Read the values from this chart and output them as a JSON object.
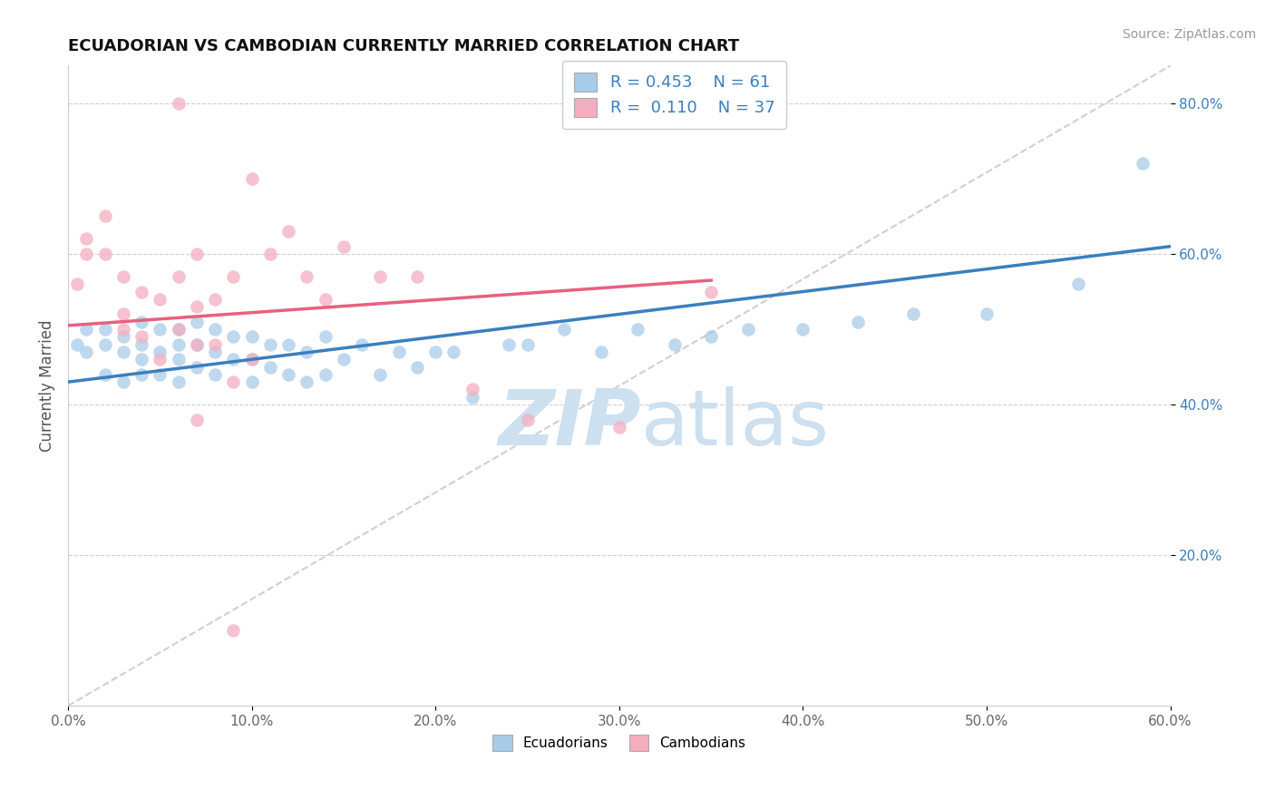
{
  "title": "ECUADORIAN VS CAMBODIAN CURRENTLY MARRIED CORRELATION CHART",
  "source": "Source: ZipAtlas.com",
  "ylabel": "Currently Married",
  "x_min": 0.0,
  "x_max": 0.6,
  "y_min": 0.0,
  "y_max": 0.85,
  "x_ticks": [
    0.0,
    0.1,
    0.2,
    0.3,
    0.4,
    0.5,
    0.6
  ],
  "x_tick_labels": [
    "0.0%",
    "10.0%",
    "20.0%",
    "30.0%",
    "40.0%",
    "50.0%",
    "60.0%"
  ],
  "y_ticks": [
    0.2,
    0.4,
    0.6,
    0.8
  ],
  "y_tick_labels": [
    "20.0%",
    "40.0%",
    "60.0%",
    "80.0%"
  ],
  "r_ecuadorian": 0.453,
  "n_ecuadorian": 61,
  "r_cambodian": 0.11,
  "n_cambodian": 37,
  "color_ecuadorian": "#a8cce8",
  "color_cambodian": "#f4aec0",
  "line_color_ecuadorian": "#3a7fc0",
  "line_color_cambodian": "#e86080",
  "dashed_line_color": "#d0d0d0",
  "watermark_color": "#cce0f0",
  "legend_label_ecuadorian": "Ecuadorians",
  "legend_label_cambodian": "Cambodians",
  "ecu_line_start_y": 0.43,
  "ecu_line_end_y": 0.61,
  "cam_line_start_y": 0.505,
  "cam_line_end_y": 0.565,
  "cam_line_end_x": 0.35,
  "ecuadorian_x": [
    0.005,
    0.01,
    0.01,
    0.02,
    0.02,
    0.02,
    0.03,
    0.03,
    0.03,
    0.04,
    0.04,
    0.04,
    0.04,
    0.05,
    0.05,
    0.05,
    0.06,
    0.06,
    0.06,
    0.06,
    0.07,
    0.07,
    0.07,
    0.08,
    0.08,
    0.08,
    0.09,
    0.09,
    0.1,
    0.1,
    0.1,
    0.11,
    0.11,
    0.12,
    0.12,
    0.13,
    0.13,
    0.14,
    0.14,
    0.15,
    0.16,
    0.17,
    0.18,
    0.19,
    0.2,
    0.21,
    0.22,
    0.24,
    0.25,
    0.27,
    0.29,
    0.31,
    0.33,
    0.35,
    0.37,
    0.4,
    0.43,
    0.46,
    0.5,
    0.55,
    0.585
  ],
  "ecuadorian_y": [
    0.48,
    0.47,
    0.5,
    0.5,
    0.48,
    0.44,
    0.49,
    0.47,
    0.43,
    0.51,
    0.48,
    0.46,
    0.44,
    0.5,
    0.47,
    0.44,
    0.5,
    0.48,
    0.46,
    0.43,
    0.51,
    0.48,
    0.45,
    0.5,
    0.47,
    0.44,
    0.49,
    0.46,
    0.49,
    0.46,
    0.43,
    0.48,
    0.45,
    0.48,
    0.44,
    0.47,
    0.43,
    0.49,
    0.44,
    0.46,
    0.48,
    0.44,
    0.47,
    0.45,
    0.47,
    0.47,
    0.41,
    0.48,
    0.48,
    0.5,
    0.47,
    0.5,
    0.48,
    0.49,
    0.5,
    0.5,
    0.51,
    0.52,
    0.52,
    0.56,
    0.72
  ],
  "cambodian_x": [
    0.005,
    0.01,
    0.01,
    0.02,
    0.02,
    0.03,
    0.03,
    0.03,
    0.04,
    0.04,
    0.05,
    0.05,
    0.06,
    0.06,
    0.07,
    0.07,
    0.07,
    0.08,
    0.08,
    0.09,
    0.09,
    0.1,
    0.1,
    0.11,
    0.12,
    0.13,
    0.14,
    0.15,
    0.17,
    0.19,
    0.22,
    0.25,
    0.3,
    0.35,
    0.06,
    0.07,
    0.09
  ],
  "cambodian_y": [
    0.56,
    0.6,
    0.62,
    0.65,
    0.6,
    0.57,
    0.52,
    0.5,
    0.55,
    0.49,
    0.54,
    0.46,
    0.57,
    0.5,
    0.6,
    0.53,
    0.48,
    0.54,
    0.48,
    0.57,
    0.43,
    0.7,
    0.46,
    0.6,
    0.63,
    0.57,
    0.54,
    0.61,
    0.57,
    0.57,
    0.42,
    0.38,
    0.37,
    0.55,
    0.8,
    0.38,
    0.1
  ]
}
